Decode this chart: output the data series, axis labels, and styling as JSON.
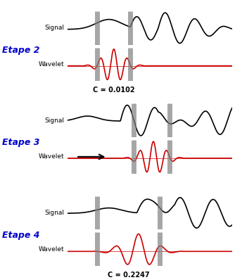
{
  "etape_labels": [
    "Etape 2",
    "Etape 3",
    "Etape 4"
  ],
  "etape_color": "#0000cc",
  "c_values": [
    "C = 0.0102",
    "C = 0.2247"
  ],
  "c_bold": true,
  "signal_label": "Signal",
  "wavelet_label": "Wavelet",
  "bar_color": "#808080",
  "bar_alpha": 0.7,
  "signal_color": "#000000",
  "wavelet_color": "#cc0000",
  "background": "#ffffff",
  "fig_width": 3.44,
  "fig_height": 3.98,
  "dpi": 100
}
